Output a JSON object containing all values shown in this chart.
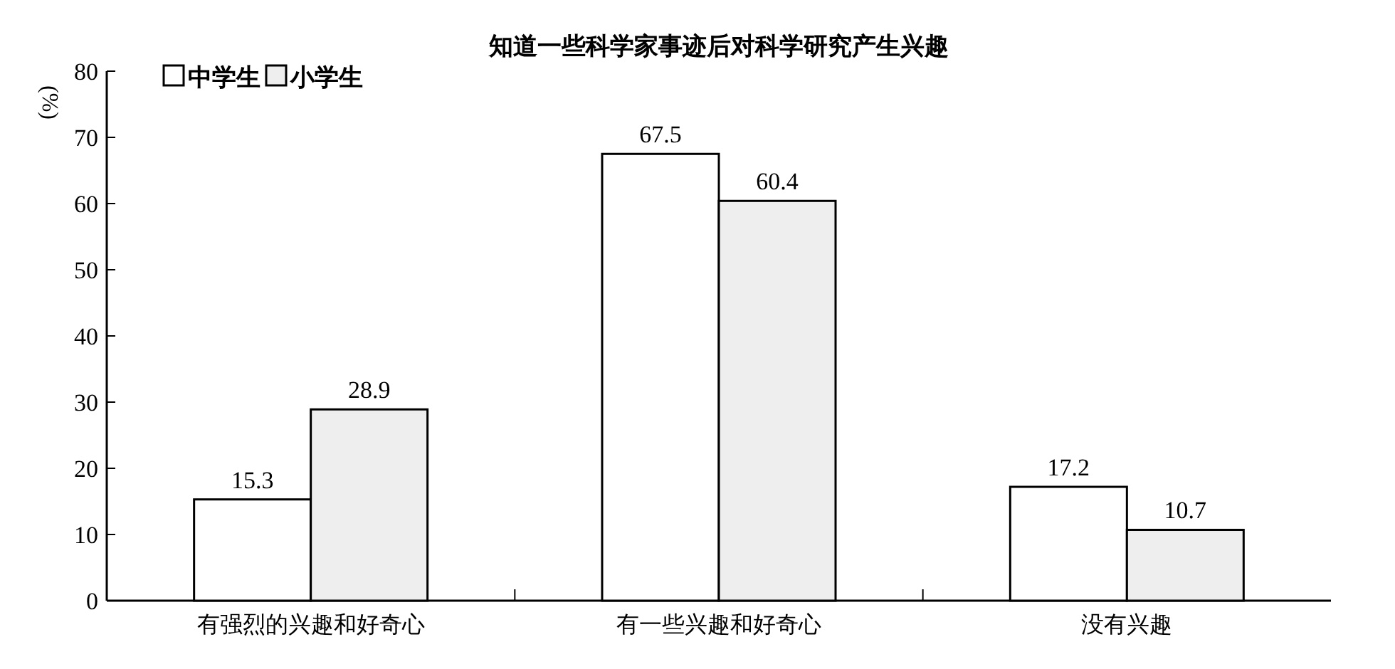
{
  "chart_data": {
    "type": "bar",
    "title": "知道一些科学家事迹后对科学研究产生兴趣",
    "ylabel": "(%)",
    "categories": [
      "有强烈的兴趣和好奇心",
      "有一些兴趣和好奇心",
      "没有兴趣"
    ],
    "series": [
      {
        "name": "中学生",
        "color": "#ffffff",
        "values": [
          15.3,
          67.5,
          17.2
        ]
      },
      {
        "name": "小学生",
        "color": "#eeeeee",
        "values": [
          28.9,
          60.4,
          10.7
        ]
      }
    ],
    "ylim": [
      0,
      80
    ],
    "yticks": [
      0,
      10,
      20,
      30,
      40,
      50,
      60,
      70,
      80
    ],
    "data_labels": true,
    "legend": "top left",
    "grid": false
  }
}
